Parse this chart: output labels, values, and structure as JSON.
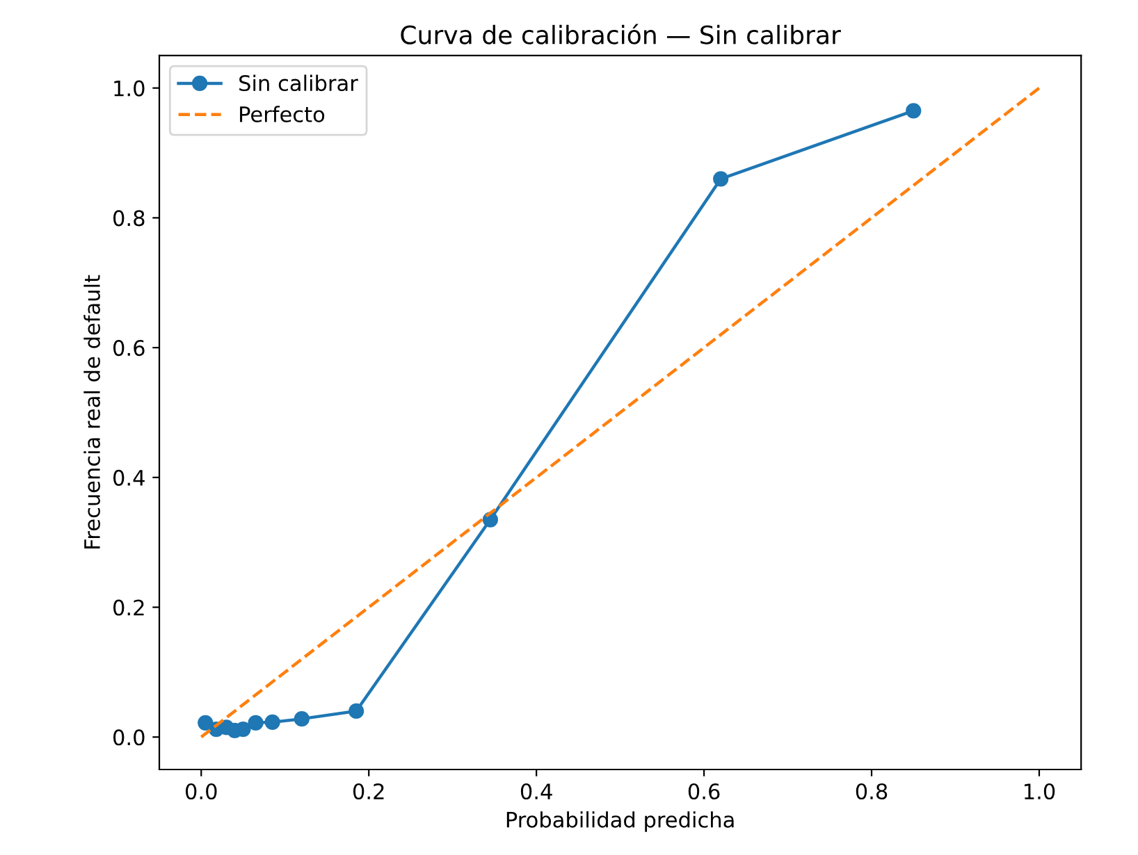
{
  "chart_data": {
    "type": "line",
    "title": "Curva de calibración — Sin calibrar",
    "xlabel": "Probabilidad predicha",
    "ylabel": "Frecuencia real de default",
    "series": [
      {
        "name": "Sin calibrar",
        "color": "#1f77b4",
        "marker": "circle",
        "line_style": "solid",
        "x": [
          0.005,
          0.018,
          0.03,
          0.04,
          0.05,
          0.065,
          0.085,
          0.12,
          0.185,
          0.345,
          0.62,
          0.85
        ],
        "values": [
          0.022,
          0.012,
          0.015,
          0.01,
          0.012,
          0.022,
          0.023,
          0.028,
          0.04,
          0.335,
          0.86,
          0.965
        ]
      },
      {
        "name": "Perfecto",
        "color": "#ff7f0e",
        "marker": "none",
        "line_style": "dashed",
        "x": [
          0,
          1
        ],
        "values": [
          0,
          1
        ]
      }
    ],
    "xlim": [
      -0.05,
      1.05
    ],
    "ylim": [
      -0.05,
      1.05
    ],
    "xticks": [
      {
        "value": 0,
        "label": "0.0"
      },
      0.2,
      0.4,
      0.6,
      0.8,
      {
        "value": 1,
        "label": "1.0"
      }
    ],
    "yticks": [
      {
        "value": 0,
        "label": "0.0"
      },
      0.2,
      0.4,
      0.6,
      0.8,
      {
        "value": 1,
        "label": "1.0"
      }
    ],
    "grid": false,
    "legend": "top left"
  }
}
